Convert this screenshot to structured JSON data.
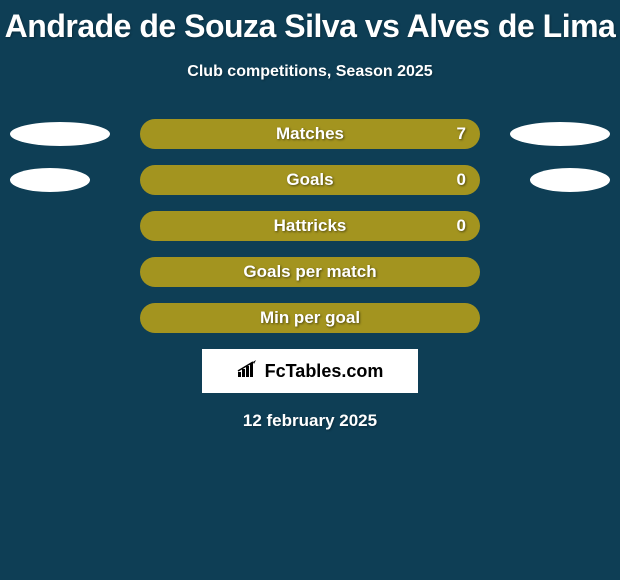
{
  "background_color": "#0e3e55",
  "title": "Andrade de Souza Silva vs Alves de Lima",
  "title_color": "#ffffff",
  "title_fontsize": 32,
  "subtitle": "Club competitions, Season 2025",
  "subtitle_color": "#ffffff",
  "subtitle_fontsize": 16,
  "bar_color": "#a3941f",
  "bar_text_color": "#ffffff",
  "ellipse_color": "#ffffff",
  "rows": [
    {
      "label": "Matches",
      "value": "7",
      "has_value": true,
      "left_ellipse_width": 100,
      "right_ellipse_width": 100
    },
    {
      "label": "Goals",
      "value": "0",
      "has_value": true,
      "left_ellipse_width": 80,
      "right_ellipse_width": 80
    },
    {
      "label": "Hattricks",
      "value": "0",
      "has_value": true,
      "left_ellipse_width": 0,
      "right_ellipse_width": 0
    },
    {
      "label": "Goals per match",
      "value": "",
      "has_value": false,
      "left_ellipse_width": 0,
      "right_ellipse_width": 0
    },
    {
      "label": "Min per goal",
      "value": "",
      "has_value": false,
      "left_ellipse_width": 0,
      "right_ellipse_width": 0
    }
  ],
  "logo_text": "FcTables.com",
  "date": "12 february 2025",
  "date_color": "#ffffff"
}
